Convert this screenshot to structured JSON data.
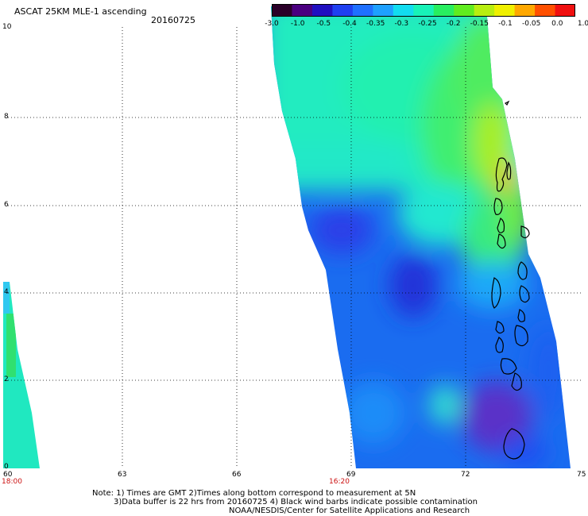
{
  "header": {
    "title": "ASCAT 25KM MLE-1 ascending",
    "date": "20160725"
  },
  "colorbar": {
    "labels": [
      "-3.0",
      "-1.0",
      "-0.5",
      "-0.4",
      "-0.35",
      "-0.3",
      "-0.25",
      "-0.2",
      "-0.15",
      "-0.1",
      "-0.05",
      "0.0",
      "1.0"
    ],
    "colors": [
      "#2a0028",
      "#4a0080",
      "#2010c0",
      "#1f40f0",
      "#1f70ff",
      "#1ea0ff",
      "#12dcf0",
      "#18f2b8",
      "#28ee60",
      "#60ec20",
      "#b8ee10",
      "#f0f000",
      "#ffa800",
      "#ff5000",
      "#f01010"
    ]
  },
  "axes": {
    "x_ticks": [
      "60",
      "63",
      "66",
      "69",
      "72",
      "75"
    ],
    "y_ticks": [
      "0",
      "2",
      "4",
      "6",
      "8",
      "10"
    ],
    "time_labels": [
      "18:00",
      "16:20"
    ],
    "time_color": "#cc1111"
  },
  "notes": {
    "line1": "Note: 1) Times are GMT 2)Times along bottom correspond to measurement at 5N",
    "line2": "3)Data buffer is 22 hrs from 20160725 4) Black wind barbs indicate possible contamination",
    "line3": "NOAA/NESDIS/Center for Satellite Applications and Research"
  }
}
